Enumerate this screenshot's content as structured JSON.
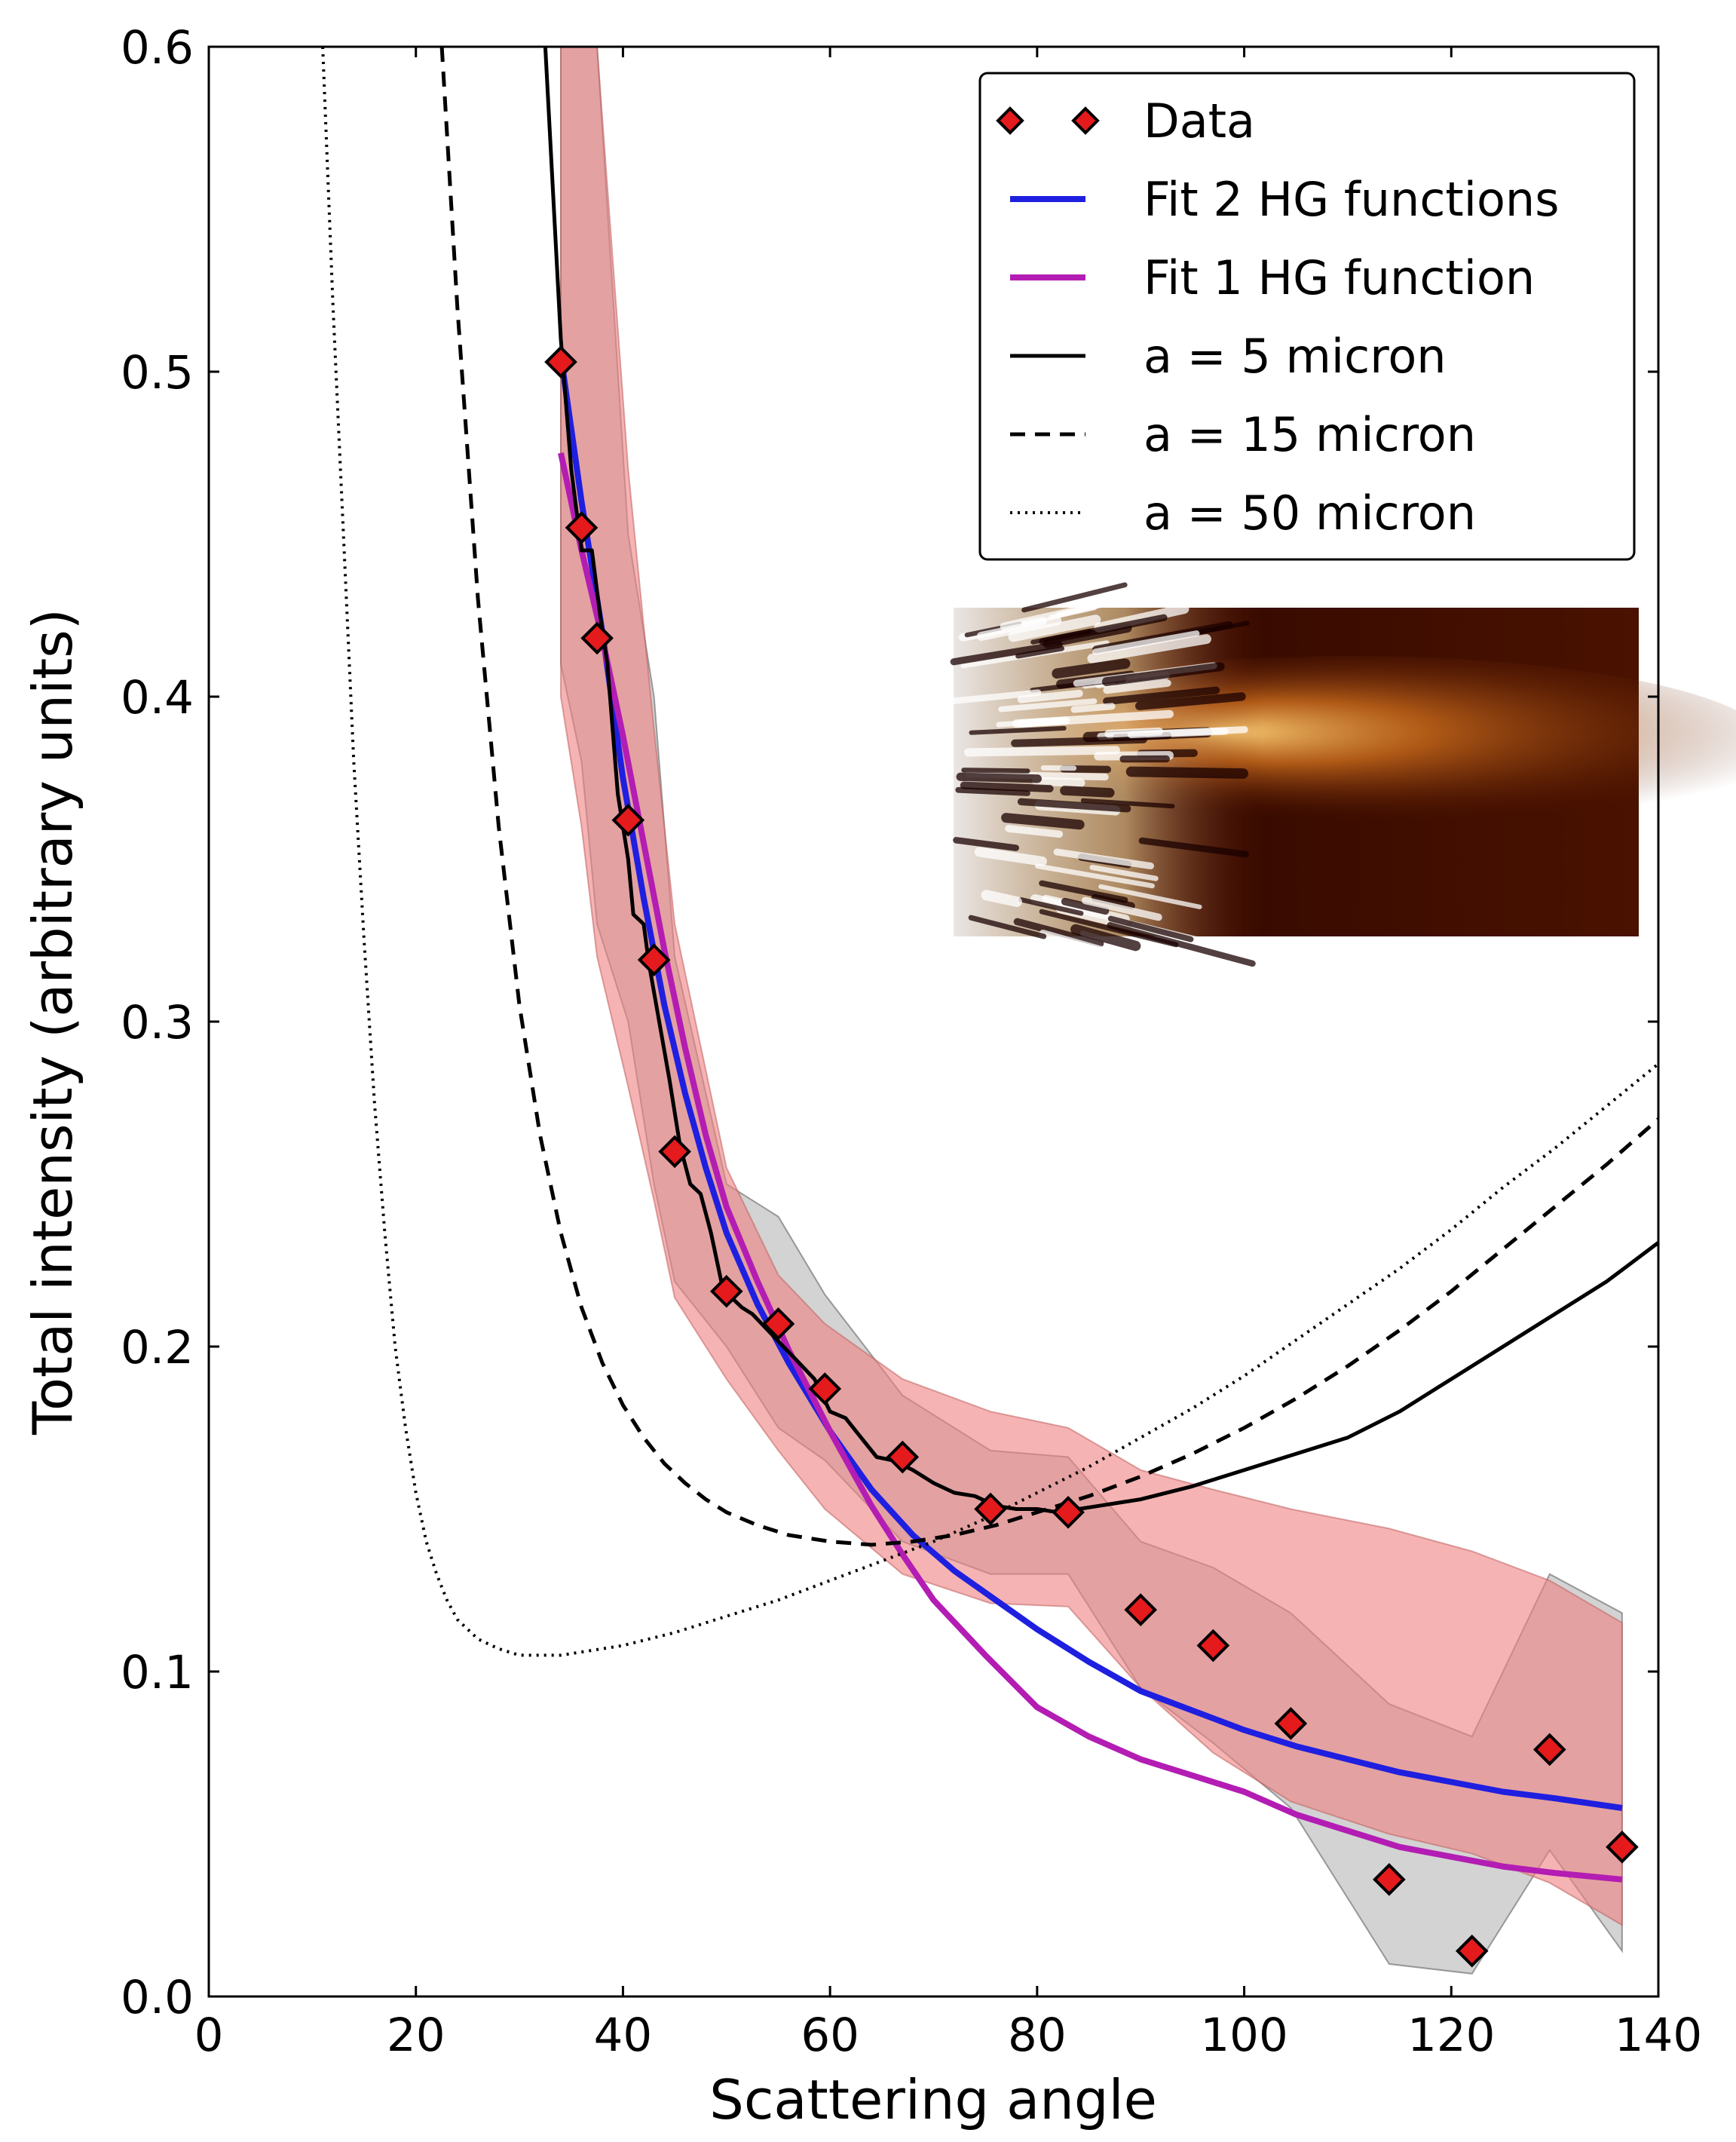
{
  "chart_data": {
    "type": "scatter",
    "title": "",
    "xlabel": "Scattering angle",
    "ylabel": "Total intensity (arbitrary units)",
    "xlim": [
      0,
      140
    ],
    "ylim": [
      0.0,
      0.6
    ],
    "xticks": [
      "0",
      "20",
      "40",
      "60",
      "80",
      "100",
      "120",
      "140"
    ],
    "yticks": [
      "0.0",
      "0.1",
      "0.2",
      "0.3",
      "0.4",
      "0.5",
      "0.6"
    ],
    "grid": false,
    "legend_position": "top-right",
    "colors": {
      "data_marker": "#e41a1c",
      "fit2": "#1f1fe0",
      "fit1": "#b31db3",
      "models": "#000000",
      "band_red": "#f08080",
      "band_grey": "#909090"
    },
    "series": [
      {
        "name": "Data",
        "kind": "points",
        "x": [
          34,
          36,
          37.5,
          40.5,
          43,
          45,
          50,
          55,
          59.5,
          67,
          75.5,
          83,
          90,
          97,
          104.5,
          114,
          122,
          129.5,
          136.5
        ],
        "y": [
          0.503,
          0.452,
          0.418,
          0.362,
          0.319,
          0.26,
          0.217,
          0.207,
          0.187,
          0.166,
          0.15,
          0.149,
          0.119,
          0.108,
          0.084,
          0.036,
          0.014,
          0.076,
          0.046
        ]
      },
      {
        "name": "Fit 2 HG functions",
        "kind": "line",
        "x": [
          34,
          36,
          38,
          40,
          42,
          44,
          46,
          48,
          50,
          53,
          56,
          60,
          64,
          68,
          72,
          76,
          80,
          85,
          90,
          95,
          100,
          105,
          110,
          115,
          120,
          125,
          130,
          136.5
        ],
        "y": [
          0.505,
          0.46,
          0.42,
          0.375,
          0.338,
          0.305,
          0.278,
          0.255,
          0.235,
          0.213,
          0.195,
          0.174,
          0.156,
          0.142,
          0.131,
          0.122,
          0.113,
          0.103,
          0.094,
          0.088,
          0.082,
          0.077,
          0.073,
          0.069,
          0.066,
          0.063,
          0.061,
          0.058
        ]
      },
      {
        "name": "Fit 1 HG function",
        "kind": "line",
        "x": [
          34,
          36,
          38,
          40,
          42,
          44,
          46,
          48,
          50,
          53,
          56,
          60,
          64,
          67,
          70,
          75,
          80,
          85,
          90,
          95,
          100,
          105,
          110,
          115,
          120,
          125,
          130,
          136.5
        ],
        "y": [
          0.475,
          0.445,
          0.418,
          0.388,
          0.355,
          0.322,
          0.292,
          0.265,
          0.243,
          0.22,
          0.199,
          0.174,
          0.151,
          0.136,
          0.122,
          0.105,
          0.089,
          0.08,
          0.073,
          0.068,
          0.063,
          0.056,
          0.051,
          0.046,
          0.043,
          0.04,
          0.038,
          0.036
        ]
      },
      {
        "name": "a = 5 micron",
        "kind": "line",
        "x": [
          32.5,
          34,
          35,
          36,
          37,
          37.8,
          38.5,
          39.5,
          40.5,
          41,
          42,
          42.5,
          43.5,
          44.5,
          45.5,
          46.5,
          47.5,
          48.5,
          49.5,
          50.5,
          51.5,
          52.5,
          54,
          55.5,
          57,
          58.5,
          60,
          61.5,
          63,
          64.5,
          66,
          68,
          70,
          72,
          74,
          76,
          78,
          80,
          82,
          84,
          86,
          88,
          90,
          95,
          100,
          105,
          110,
          115,
          120,
          125,
          130,
          135,
          140
        ],
        "y": [
          0.6,
          0.51,
          0.47,
          0.445,
          0.445,
          0.425,
          0.41,
          0.37,
          0.35,
          0.333,
          0.33,
          0.318,
          0.3,
          0.282,
          0.262,
          0.25,
          0.247,
          0.235,
          0.22,
          0.215,
          0.212,
          0.21,
          0.205,
          0.2,
          0.195,
          0.19,
          0.18,
          0.178,
          0.172,
          0.166,
          0.165,
          0.162,
          0.158,
          0.155,
          0.154,
          0.151,
          0.15,
          0.15,
          0.149,
          0.15,
          0.151,
          0.152,
          0.153,
          0.157,
          0.162,
          0.167,
          0.172,
          0.18,
          0.19,
          0.2,
          0.21,
          0.22,
          0.232
        ]
      },
      {
        "name": "a = 15 micron",
        "kind": "line",
        "dash": "dashed",
        "x": [
          22.5,
          24,
          26,
          28,
          30,
          32,
          34,
          36,
          38,
          40,
          42,
          44,
          46,
          48,
          50,
          53,
          56,
          60,
          64,
          68,
          72,
          76,
          80,
          85,
          90,
          95,
          100,
          105,
          110,
          115,
          120,
          125,
          130,
          135,
          140
        ],
        "y": [
          0.6,
          0.52,
          0.43,
          0.36,
          0.305,
          0.265,
          0.235,
          0.212,
          0.195,
          0.182,
          0.172,
          0.164,
          0.158,
          0.153,
          0.149,
          0.145,
          0.142,
          0.14,
          0.139,
          0.14,
          0.142,
          0.145,
          0.149,
          0.154,
          0.16,
          0.167,
          0.175,
          0.184,
          0.194,
          0.205,
          0.217,
          0.23,
          0.243,
          0.256,
          0.27
        ]
      },
      {
        "name": "a = 50 micron",
        "kind": "line",
        "dash": "dotted",
        "x": [
          11,
          12,
          13,
          14,
          15,
          16,
          17,
          18,
          19,
          20,
          21,
          22,
          23,
          24,
          26,
          28,
          30,
          32,
          34,
          36,
          40,
          45,
          50,
          55,
          60,
          65,
          70,
          75,
          80,
          85,
          90,
          95,
          100,
          105,
          110,
          115,
          120,
          125,
          130,
          135,
          140
        ],
        "y": [
          0.6,
          0.52,
          0.45,
          0.38,
          0.325,
          0.275,
          0.235,
          0.2,
          0.175,
          0.155,
          0.14,
          0.13,
          0.122,
          0.116,
          0.11,
          0.107,
          0.105,
          0.105,
          0.105,
          0.106,
          0.108,
          0.112,
          0.117,
          0.122,
          0.128,
          0.134,
          0.14,
          0.147,
          0.155,
          0.163,
          0.172,
          0.181,
          0.191,
          0.202,
          0.213,
          0.224,
          0.236,
          0.249,
          0.261,
          0.274,
          0.287
        ]
      }
    ],
    "bands": [
      {
        "kind": "grey",
        "x": [
          34,
          36,
          37.5,
          40.5,
          43,
          45,
          50,
          55,
          59.5,
          67,
          75.5,
          83,
          90,
          97,
          104.5,
          114,
          122,
          129.5,
          136.5
        ],
        "upper": [
          0.6,
          0.6,
          0.6,
          0.45,
          0.4,
          0.32,
          0.25,
          0.24,
          0.216,
          0.185,
          0.168,
          0.166,
          0.14,
          0.132,
          0.118,
          0.09,
          0.08,
          0.13,
          0.118
        ],
        "lower": [
          0.41,
          0.38,
          0.33,
          0.3,
          0.25,
          0.22,
          0.2,
          0.175,
          0.165,
          0.14,
          0.13,
          0.13,
          0.095,
          0.078,
          0.058,
          0.01,
          0.007,
          0.045,
          0.014
        ]
      },
      {
        "kind": "red",
        "x": [
          34,
          36,
          37.5,
          40.5,
          43,
          45,
          50,
          55,
          59.5,
          67,
          75.5,
          83,
          90,
          97,
          104.5,
          114,
          122,
          129.5,
          136.5
        ],
        "upper": [
          0.6,
          0.6,
          0.6,
          0.47,
          0.39,
          0.33,
          0.255,
          0.222,
          0.207,
          0.19,
          0.18,
          0.175,
          0.162,
          0.156,
          0.15,
          0.144,
          0.137,
          0.128,
          0.115
        ],
        "lower": [
          0.4,
          0.36,
          0.32,
          0.28,
          0.245,
          0.215,
          0.19,
          0.168,
          0.15,
          0.13,
          0.121,
          0.12,
          0.095,
          0.075,
          0.06,
          0.05,
          0.044,
          0.035,
          0.022
        ]
      }
    ],
    "legend": {
      "entries": [
        {
          "label": "Data",
          "series": 0
        },
        {
          "label": "Fit 2 HG functions",
          "series": 1
        },
        {
          "label": "Fit 1 HG function",
          "series": 2
        },
        {
          "label": "a = 5 micron",
          "series": 3
        },
        {
          "label": "a = 15 micron",
          "series": 4
        },
        {
          "label": "a = 50 micron",
          "series": 5
        }
      ]
    }
  }
}
